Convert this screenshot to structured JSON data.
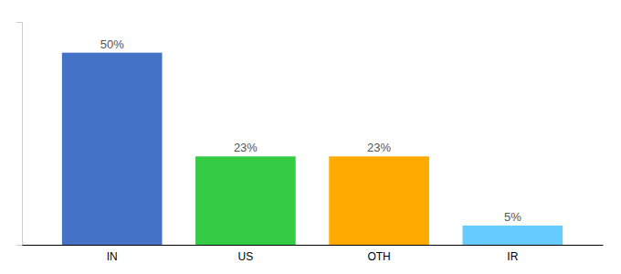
{
  "chart_data": {
    "type": "bar",
    "categories": [
      "IN",
      "US",
      "OTH",
      "IR"
    ],
    "values": [
      50,
      23,
      23,
      5
    ],
    "value_labels": [
      "50%",
      "23%",
      "23%",
      "5%"
    ],
    "data_labels": true,
    "colors": [
      "#4472C4",
      "#33CC44",
      "#FFAA00",
      "#66CCFF"
    ],
    "ylim": [
      0,
      58
    ],
    "tick_labels": "x"
  }
}
